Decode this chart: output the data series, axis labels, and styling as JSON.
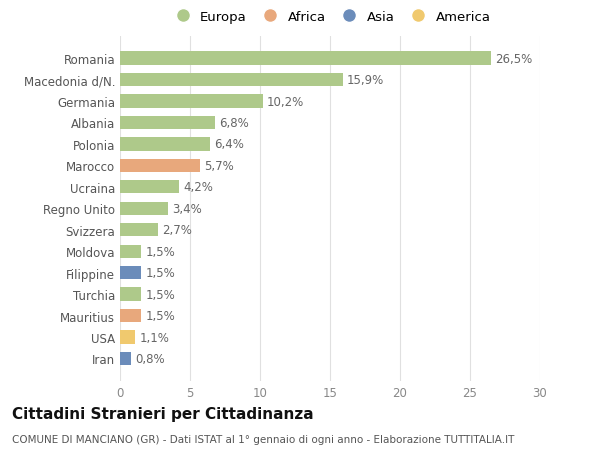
{
  "countries": [
    "Romania",
    "Macedonia d/N.",
    "Germania",
    "Albania",
    "Polonia",
    "Marocco",
    "Ucraina",
    "Regno Unito",
    "Svizzera",
    "Moldova",
    "Filippine",
    "Turchia",
    "Mauritius",
    "USA",
    "Iran"
  ],
  "values": [
    26.5,
    15.9,
    10.2,
    6.8,
    6.4,
    5.7,
    4.2,
    3.4,
    2.7,
    1.5,
    1.5,
    1.5,
    1.5,
    1.1,
    0.8
  ],
  "labels": [
    "26,5%",
    "15,9%",
    "10,2%",
    "6,8%",
    "6,4%",
    "5,7%",
    "4,2%",
    "3,4%",
    "2,7%",
    "1,5%",
    "1,5%",
    "1,5%",
    "1,5%",
    "1,1%",
    "0,8%"
  ],
  "colors": [
    "#aec98a",
    "#aec98a",
    "#aec98a",
    "#aec98a",
    "#aec98a",
    "#e8a87c",
    "#aec98a",
    "#aec98a",
    "#aec98a",
    "#aec98a",
    "#6b8cba",
    "#aec98a",
    "#e8a87c",
    "#f0c96e",
    "#6b8cba"
  ],
  "continent_colors": {
    "Europa": "#aec98a",
    "Africa": "#e8a87c",
    "Asia": "#6b8cba",
    "America": "#f0c96e"
  },
  "title": "Cittadini Stranieri per Cittadinanza",
  "subtitle": "COMUNE DI MANCIANO (GR) - Dati ISTAT al 1° gennaio di ogni anno - Elaborazione TUTTITALIA.IT",
  "xlim": [
    0,
    30
  ],
  "xticks": [
    0,
    5,
    10,
    15,
    20,
    25,
    30
  ],
  "background_color": "#ffffff",
  "grid_color": "#e0e0e0",
  "bar_height": 0.62,
  "label_fontsize": 8.5,
  "tick_fontsize": 8.5,
  "title_fontsize": 11,
  "subtitle_fontsize": 7.5
}
